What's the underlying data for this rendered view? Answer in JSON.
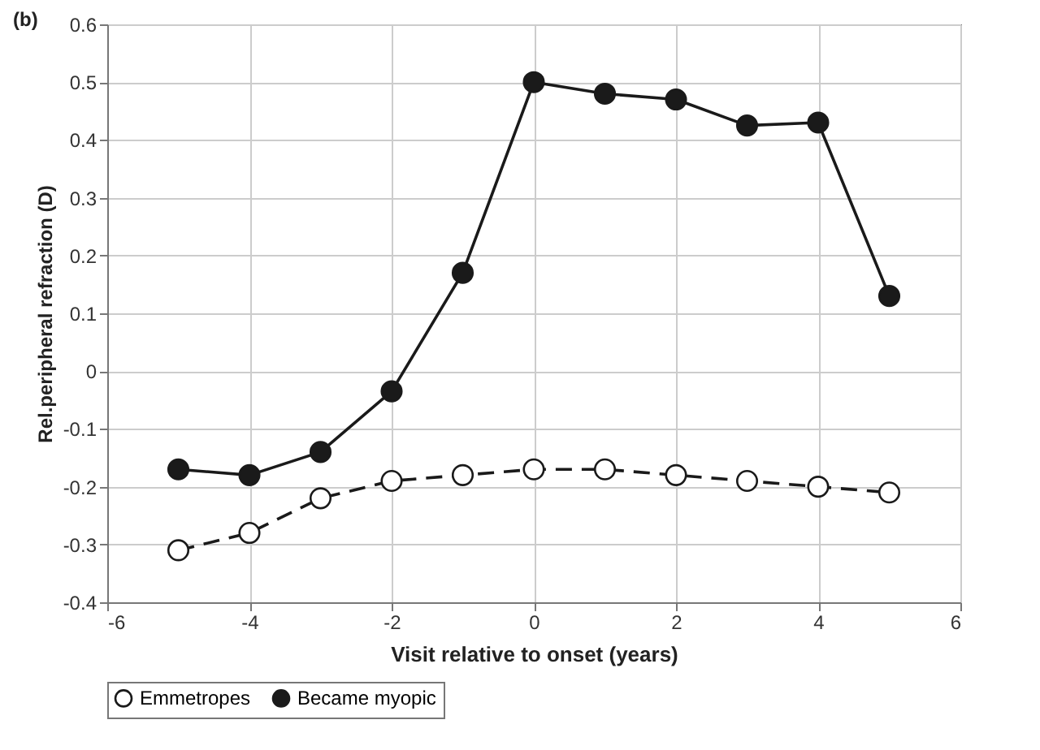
{
  "chart_data": {
    "type": "line",
    "title": "(b)",
    "xlabel": "Visit relative to onset (years)",
    "ylabel": "Rel.peripheral refraction (D)",
    "x": [
      -5,
      -4,
      -3,
      -2,
      -1,
      0,
      1,
      2,
      3,
      4,
      5
    ],
    "series": [
      {
        "name": "Emmetropes",
        "color": "#1a1a1a",
        "line_style": "dashed",
        "values": [
          -0.31,
          -0.28,
          -0.22,
          -0.19,
          -0.18,
          -0.17,
          -0.17,
          -0.18,
          -0.19,
          -0.2,
          -0.21
        ]
      },
      {
        "name": "Became myopic",
        "color": "#1a1a1a",
        "line_style": "solid",
        "values": [
          -0.17,
          -0.18,
          -0.14,
          -0.035,
          0.17,
          0.5,
          0.48,
          0.47,
          0.425,
          0.43,
          0.13
        ]
      }
    ],
    "xlim": [
      -6,
      6
    ],
    "xticks": [
      -6,
      -4,
      -2,
      0,
      2,
      4,
      6
    ],
    "ylim": [
      -0.4,
      0.6
    ],
    "yticks": [
      -0.4,
      -0.3,
      -0.2,
      -0.1,
      0,
      0.1,
      0.2,
      0.3,
      0.4,
      0.5,
      0.6
    ],
    "grid": true,
    "legend": "bottom",
    "marker": "circle"
  }
}
